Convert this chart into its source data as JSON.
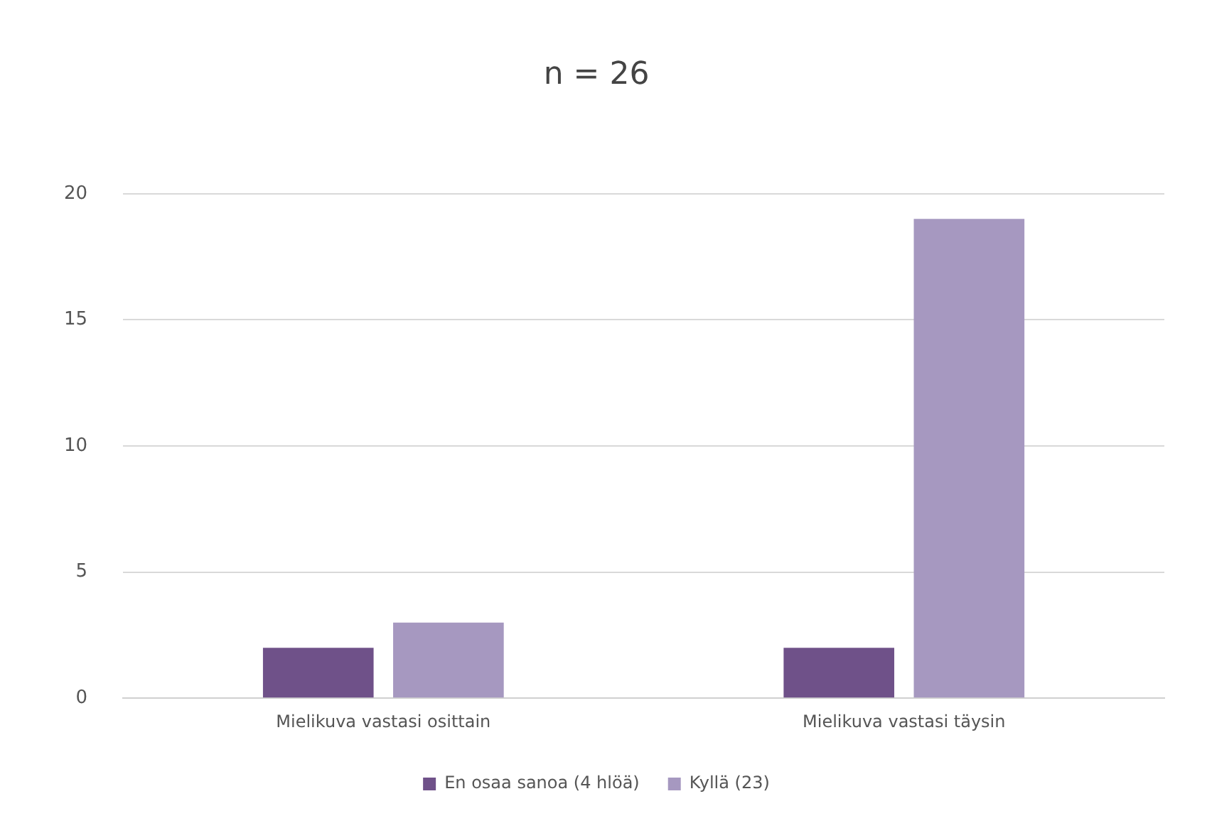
{
  "chart_data": {
    "type": "bar",
    "title": "n = 26",
    "categories": [
      "Mielikuva vastasi osittain",
      "Mielikuva vastasi täysin"
    ],
    "series": [
      {
        "name": "En osaa sanoa (4 hlöä)",
        "color": "#6f5189",
        "values": [
          2,
          2
        ]
      },
      {
        "name": "Kyllä (23)",
        "color": "#a698c0",
        "values": [
          3,
          19
        ]
      }
    ],
    "ylim": [
      0,
      20
    ],
    "yticks": [
      0,
      5,
      10,
      15,
      20
    ],
    "grid": "y",
    "legend": "bottom"
  }
}
